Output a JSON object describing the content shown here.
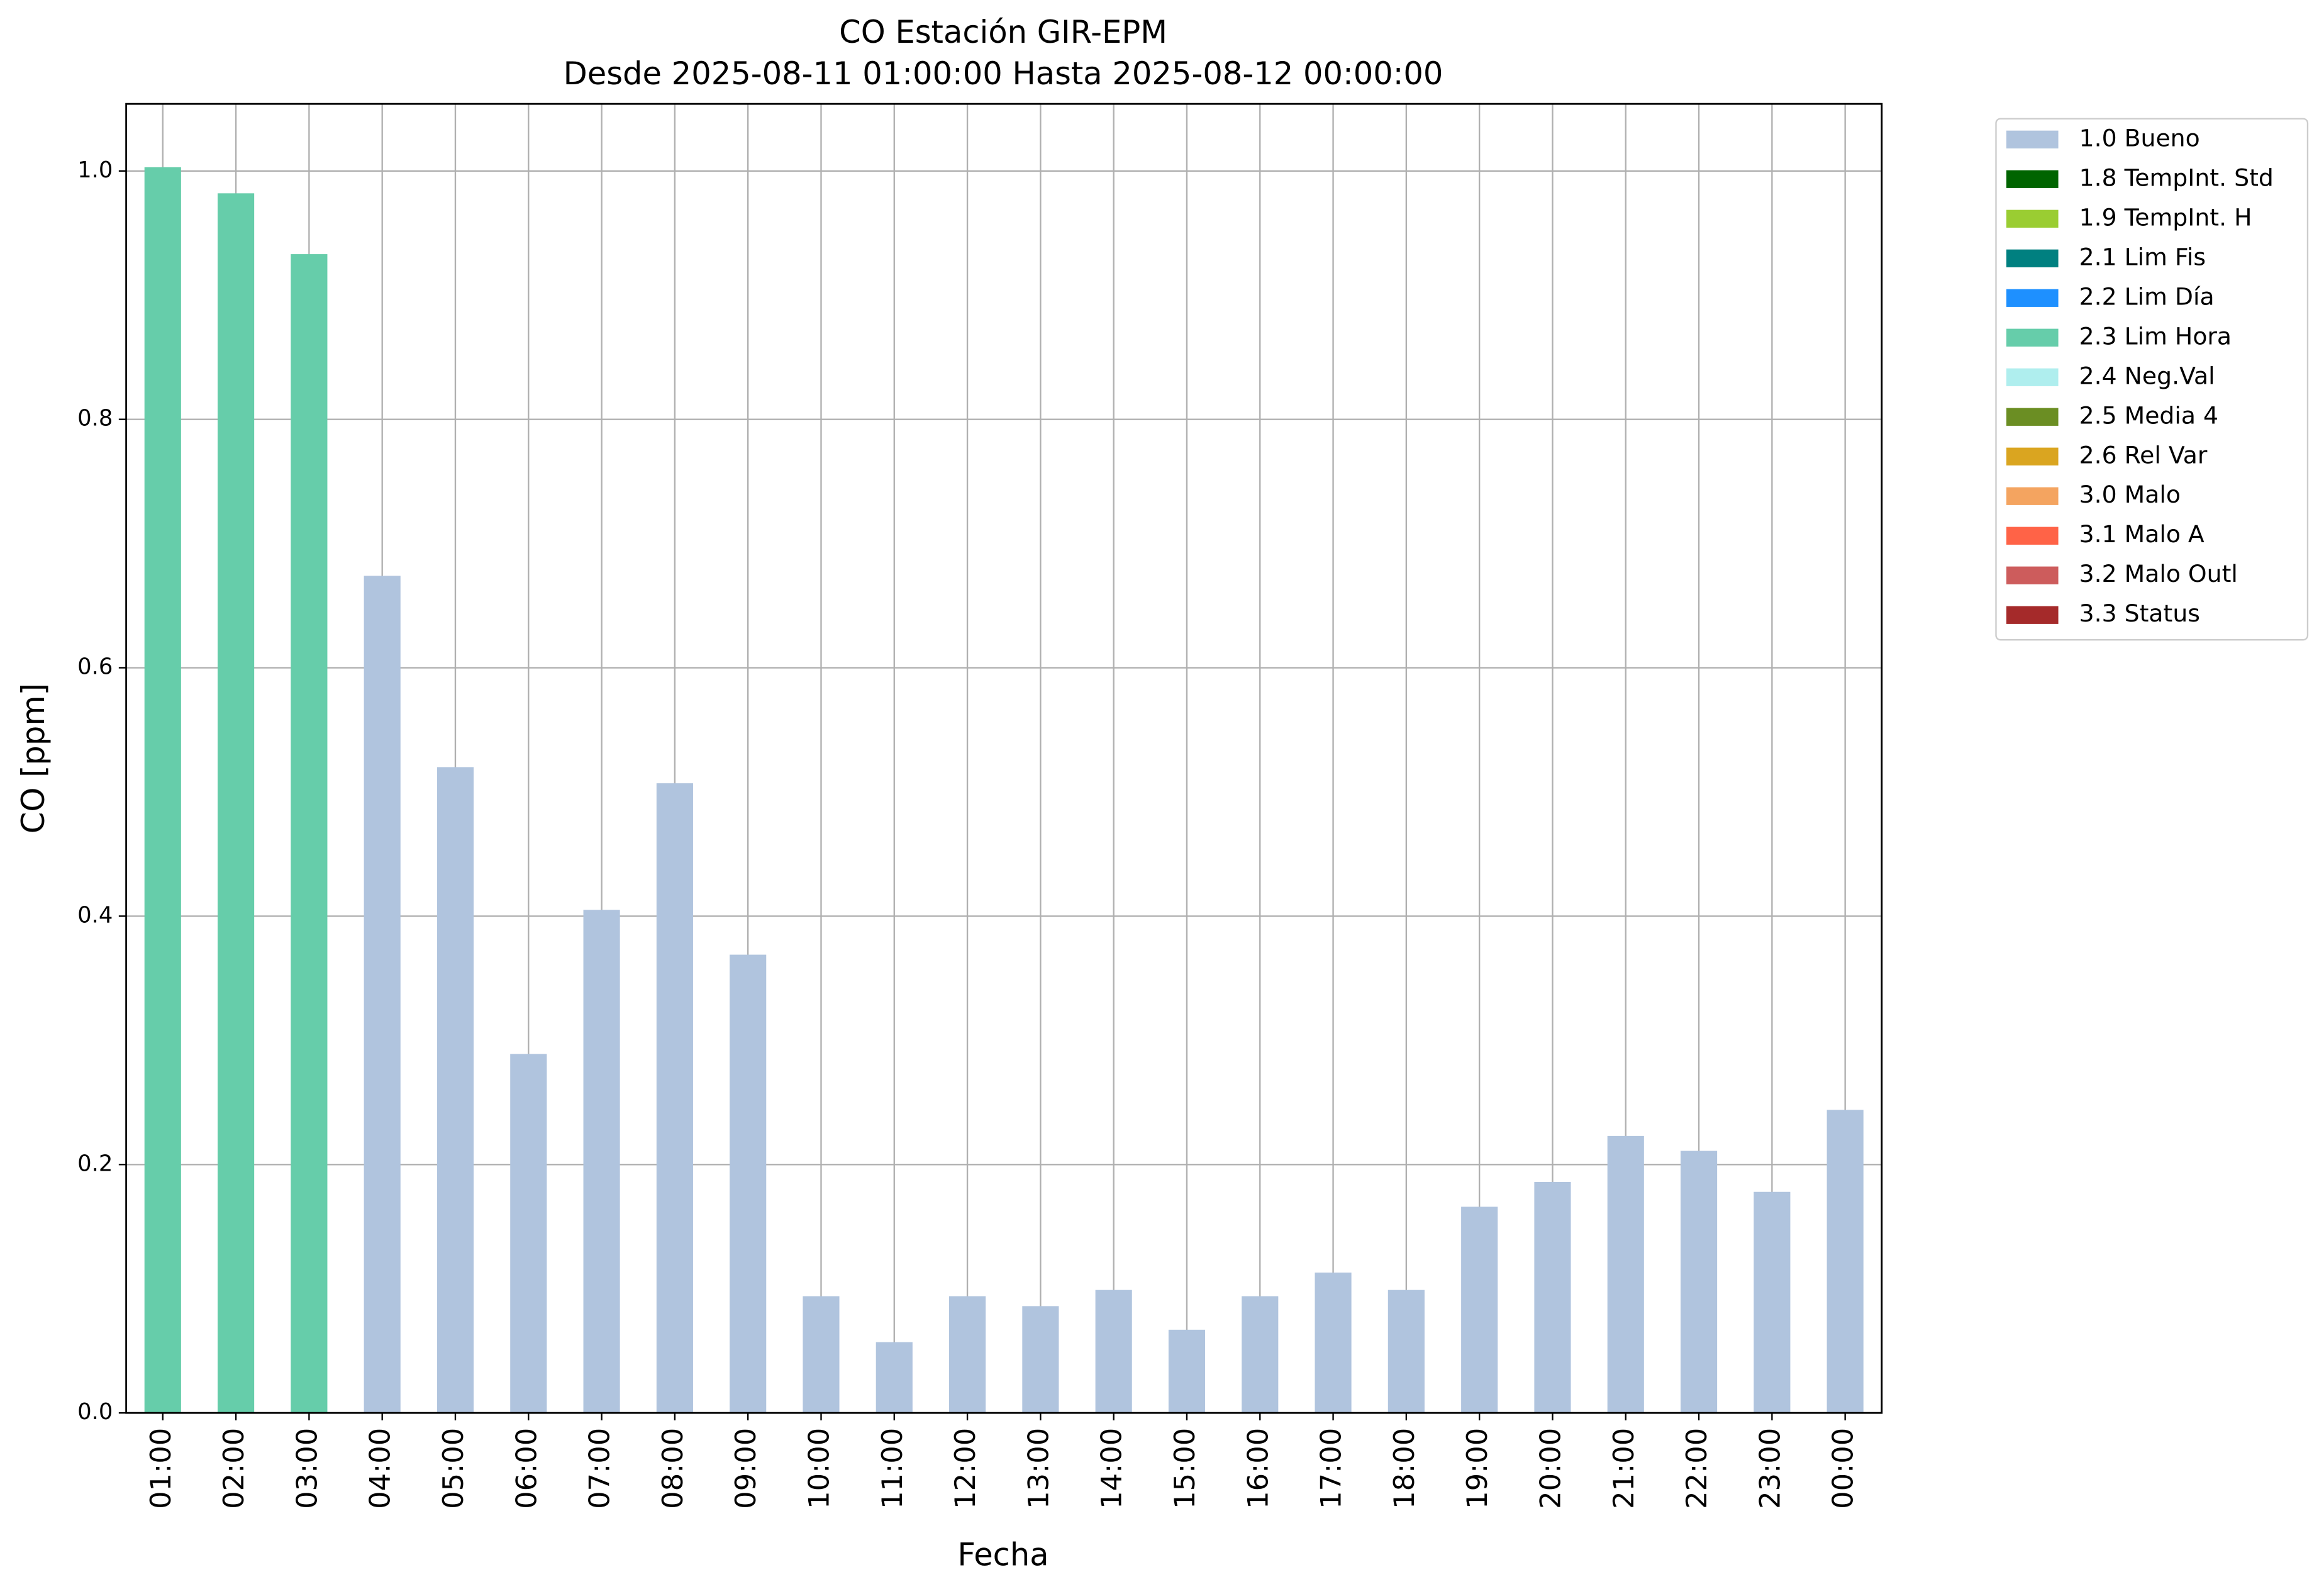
{
  "chart_data": {
    "type": "bar",
    "stacked": true,
    "title": "CO Estación GIR-EPM",
    "subtitle": "Desde 2025-08-11 01:00:00 Hasta 2025-08-12 00:00:00",
    "x_label": "Fecha",
    "y_label": "CO [ppm]",
    "categories": [
      "01:00",
      "02:00",
      "03:00",
      "04:00",
      "05:00",
      "06:00",
      "07:00",
      "08:00",
      "09:00",
      "10:00",
      "11:00",
      "12:00",
      "13:00",
      "14:00",
      "15:00",
      "16:00",
      "17:00",
      "18:00",
      "19:00",
      "20:00",
      "21:00",
      "22:00",
      "23:00",
      "00:00"
    ],
    "series": [
      {
        "name": "1.0 Bueno",
        "color": "#b0c4de",
        "values": [
          null,
          null,
          null,
          0.674,
          0.52,
          0.289,
          0.405,
          0.507,
          0.369,
          0.094,
          0.057,
          0.094,
          0.086,
          0.099,
          0.067,
          0.094,
          0.113,
          0.099,
          0.166,
          0.186,
          0.223,
          0.211,
          0.178,
          0.244
        ]
      },
      {
        "name": "1.8 TempInt. Std",
        "color": "#006400",
        "values": [
          null,
          null,
          null,
          null,
          null,
          null,
          null,
          null,
          null,
          null,
          null,
          null,
          null,
          null,
          null,
          null,
          null,
          null,
          null,
          null,
          null,
          null,
          null,
          null
        ]
      },
      {
        "name": "1.9 TempInt. H",
        "color": "#9acd32",
        "values": [
          null,
          null,
          null,
          null,
          null,
          null,
          null,
          null,
          null,
          null,
          null,
          null,
          null,
          null,
          null,
          null,
          null,
          null,
          null,
          null,
          null,
          null,
          null,
          null
        ]
      },
      {
        "name": "2.1 Lim Fis",
        "color": "#008080",
        "values": [
          null,
          null,
          null,
          null,
          null,
          null,
          null,
          null,
          null,
          null,
          null,
          null,
          null,
          null,
          null,
          null,
          null,
          null,
          null,
          null,
          null,
          null,
          null,
          null
        ]
      },
      {
        "name": "2.2 Lim Día",
        "color": "#1e90ff",
        "values": [
          null,
          null,
          null,
          null,
          null,
          null,
          null,
          null,
          null,
          null,
          null,
          null,
          null,
          null,
          null,
          null,
          null,
          null,
          null,
          null,
          null,
          null,
          null,
          null
        ]
      },
      {
        "name": "2.3 Lim Hora",
        "color": "#66cdaa",
        "values": [
          1.003,
          0.982,
          0.933,
          null,
          null,
          null,
          null,
          null,
          null,
          null,
          null,
          null,
          null,
          null,
          null,
          null,
          null,
          null,
          null,
          null,
          null,
          null,
          null,
          null
        ]
      },
      {
        "name": "2.4 Neg.Val",
        "color": "#afeeee",
        "values": [
          null,
          null,
          null,
          null,
          null,
          null,
          null,
          null,
          null,
          null,
          null,
          null,
          null,
          null,
          null,
          null,
          null,
          null,
          null,
          null,
          null,
          null,
          null,
          null
        ]
      },
      {
        "name": "2.5 Media 4",
        "color": "#6b8e23",
        "values": [
          null,
          null,
          null,
          null,
          null,
          null,
          null,
          null,
          null,
          null,
          null,
          null,
          null,
          null,
          null,
          null,
          null,
          null,
          null,
          null,
          null,
          null,
          null,
          null
        ]
      },
      {
        "name": "2.6 Rel Var",
        "color": "#daa520",
        "values": [
          null,
          null,
          null,
          null,
          null,
          null,
          null,
          null,
          null,
          null,
          null,
          null,
          null,
          null,
          null,
          null,
          null,
          null,
          null,
          null,
          null,
          null,
          null,
          null
        ]
      },
      {
        "name": "3.0 Malo",
        "color": "#f4a460",
        "values": [
          null,
          null,
          null,
          null,
          null,
          null,
          null,
          null,
          null,
          null,
          null,
          null,
          null,
          null,
          null,
          null,
          null,
          null,
          null,
          null,
          null,
          null,
          null,
          null
        ]
      },
      {
        "name": "3.1 Malo A",
        "color": "#ff6347",
        "values": [
          null,
          null,
          null,
          null,
          null,
          null,
          null,
          null,
          null,
          null,
          null,
          null,
          null,
          null,
          null,
          null,
          null,
          null,
          null,
          null,
          null,
          null,
          null,
          null
        ]
      },
      {
        "name": "3.2 Malo Outl",
        "color": "#cd5c5c",
        "values": [
          null,
          null,
          null,
          null,
          null,
          null,
          null,
          null,
          null,
          null,
          null,
          null,
          null,
          null,
          null,
          null,
          null,
          null,
          null,
          null,
          null,
          null,
          null,
          null
        ]
      },
      {
        "name": "3.3 Status",
        "color": "#a52a2a",
        "values": [
          null,
          null,
          null,
          null,
          null,
          null,
          null,
          null,
          null,
          null,
          null,
          null,
          null,
          null,
          null,
          null,
          null,
          null,
          null,
          null,
          null,
          null,
          null,
          null
        ]
      }
    ],
    "ylim": [
      0,
      1.054
    ],
    "yticks": [
      {
        "value": 0,
        "label": "0.0"
      },
      0.2,
      0.4,
      0.6,
      0.8,
      {
        "value": 1,
        "label": "1.0"
      }
    ],
    "grid": true,
    "legend": "outside-top-right"
  }
}
